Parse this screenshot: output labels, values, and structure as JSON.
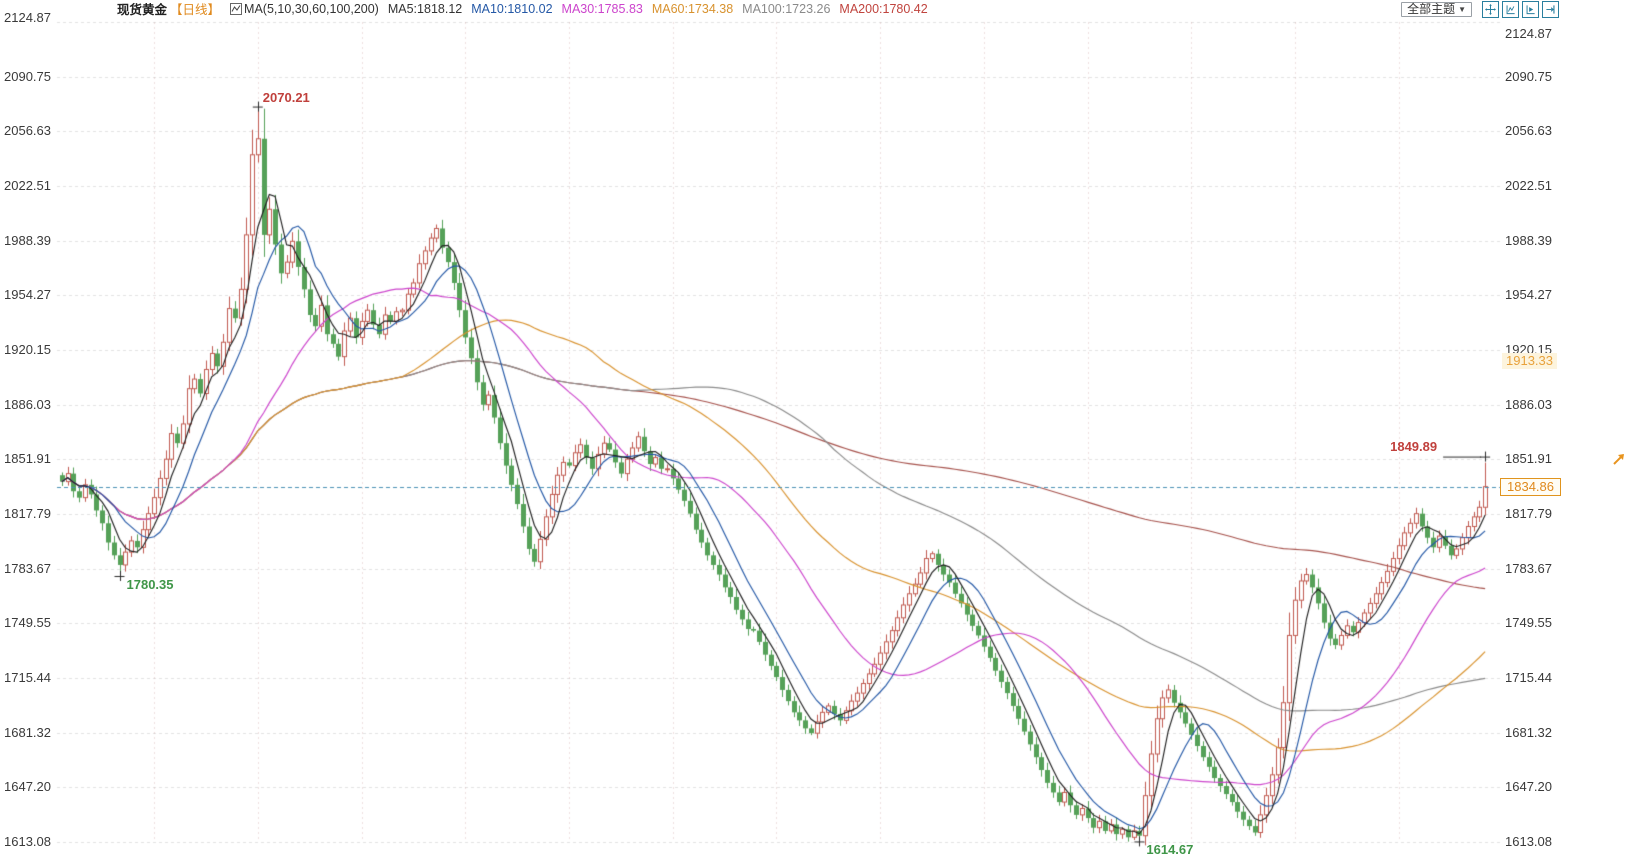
{
  "header": {
    "title": "现货黄金",
    "period": "【日线】",
    "ma_group_label": "MA(5,10,30,60,100,200)",
    "ma_items": [
      {
        "label": "MA5:1818.12",
        "color": "#333333"
      },
      {
        "label": "MA10:1810.02",
        "color": "#2458a6"
      },
      {
        "label": "MA30:1785.83",
        "color": "#cc44cc"
      },
      {
        "label": "MA60:1734.38",
        "color": "#d8922e"
      },
      {
        "label": "MA100:1723.26",
        "color": "#8a8a8a"
      },
      {
        "label": "MA200:1780.42",
        "color": "#c0443e"
      }
    ]
  },
  "toolbar": {
    "theme_button": "全部主题",
    "dropdown_arrow": "▼",
    "icon_color": "#2a7f9e",
    "icons": [
      "pan-crosshair-icon",
      "chart-axis-icon",
      "chart-play-icon",
      "pan-right-icon"
    ]
  },
  "y_axis": {
    "ticks": [
      "2124.87",
      "2090.75",
      "2056.63",
      "2022.51",
      "1988.39",
      "1954.27",
      "1920.15",
      "1886.03",
      "1851.91",
      "1817.79",
      "1783.67",
      "1749.55",
      "1715.44",
      "1681.32",
      "1647.20",
      "1613.08"
    ],
    "highlight": {
      "label": "1913.33",
      "price": 1913.33,
      "color": "#e8a23c"
    }
  },
  "price_tag": {
    "label": "1834.86",
    "price": 1834.86,
    "color": "#e08a1e"
  },
  "markers": {
    "high": {
      "label": "2070.21",
      "index": 34,
      "price": 2070.21,
      "color": "#c0403c",
      "position": "above-right"
    },
    "early_low": {
      "label": "1780.35",
      "index": 10,
      "price": 1780.35,
      "color": "#3f9648",
      "position": "below-right"
    },
    "low": {
      "label": "1614.67",
      "index": 187,
      "price": 1614.67,
      "color": "#3f9648",
      "position": "below-right"
    },
    "last_high": {
      "label": "1849.89",
      "index": 247,
      "price": 1849.89,
      "color": "#c0403c",
      "position": "left-connector"
    }
  },
  "chart_data": {
    "type": "candlestick",
    "instrument": "现货黄金",
    "interval": "日线",
    "y_min": 1613.08,
    "y_max": 2124.87,
    "y_ticks": [
      2124.87,
      2090.75,
      2056.63,
      2022.51,
      1988.39,
      1954.27,
      1920.15,
      1886.03,
      1851.91,
      1817.79,
      1783.67,
      1749.55,
      1715.44,
      1681.32,
      1647.2,
      1613.08
    ],
    "open_first": 1842,
    "closes": [
      1838,
      1843,
      1832,
      1828,
      1836,
      1830,
      1820,
      1812,
      1800,
      1792,
      1786,
      1794,
      1801,
      1797,
      1808,
      1818,
      1828,
      1840,
      1852,
      1868,
      1862,
      1874,
      1896,
      1902,
      1893,
      1908,
      1918,
      1910,
      1925,
      1946,
      1940,
      1958,
      1992,
      2042,
      2052,
      1992,
      2008,
      1986,
      1968,
      1975,
      1988,
      1972,
      1958,
      1942,
      1935,
      1948,
      1930,
      1924,
      1916,
      1932,
      1940,
      1928,
      1938,
      1945,
      1936,
      1930,
      1942,
      1938,
      1944,
      1945,
      1955,
      1962,
      1974,
      1982,
      1990,
      1996,
      1984,
      1975,
      1962,
      1945,
      1928,
      1915,
      1900,
      1886,
      1892,
      1878,
      1862,
      1848,
      1836,
      1824,
      1810,
      1796,
      1788,
      1802,
      1816,
      1830,
      1842,
      1850,
      1848,
      1856,
      1861,
      1853,
      1846,
      1855,
      1862,
      1858,
      1850,
      1843,
      1852,
      1859,
      1866,
      1857,
      1849,
      1853,
      1846,
      1846,
      1840,
      1833,
      1826,
      1818,
      1808,
      1800,
      1792,
      1786,
      1780,
      1772,
      1766,
      1758,
      1752,
      1746,
      1745,
      1738,
      1730,
      1723,
      1716,
      1708,
      1701,
      1694,
      1689,
      1684,
      1681,
      1688,
      1694,
      1698,
      1693,
      1689,
      1695,
      1701,
      1706,
      1712,
      1718,
      1724,
      1731,
      1738,
      1745,
      1753,
      1761,
      1768,
      1774,
      1781,
      1790,
      1793,
      1786,
      1780,
      1775,
      1768,
      1762,
      1755,
      1748,
      1742,
      1735,
      1728,
      1720,
      1713,
      1706,
      1698,
      1690,
      1682,
      1674,
      1666,
      1658,
      1650,
      1644,
      1638,
      1644,
      1636,
      1630,
      1634,
      1628,
      1622,
      1626,
      1620,
      1624,
      1618,
      1621,
      1616,
      1620,
      1617,
      1642,
      1668,
      1690,
      1703,
      1708,
      1700,
      1694,
      1687,
      1680,
      1673,
      1666,
      1660,
      1653,
      1648,
      1643,
      1638,
      1632,
      1627,
      1623,
      1619,
      1630,
      1642,
      1655,
      1672,
      1700,
      1742,
      1764,
      1776,
      1780,
      1772,
      1762,
      1750,
      1740,
      1736,
      1742,
      1748,
      1744,
      1750,
      1756,
      1762,
      1768,
      1775,
      1782,
      1790,
      1798,
      1806,
      1812,
      1818,
      1810,
      1803,
      1797,
      1804,
      1798,
      1792,
      1796,
      1803,
      1810,
      1816,
      1822,
      1834.86
    ],
    "extremes": {
      "10": {
        "low": 1780.35
      },
      "34": {
        "high": 2070.21
      },
      "187": {
        "low": 1614.67
      },
      "247": {
        "high": 1849.89
      }
    },
    "up_color": "#c05a50",
    "down_color": "#55a158",
    "moving_averages": [
      {
        "period": 5,
        "color": "#222222"
      },
      {
        "period": 10,
        "color": "#2458a6"
      },
      {
        "period": 30,
        "color": "#cc44cc"
      },
      {
        "period": 60,
        "color": "#d8922e"
      },
      {
        "period": 100,
        "color": "#8a8a8a"
      },
      {
        "period": 200,
        "color": "#a6524c"
      }
    ],
    "current_price": 1834.86,
    "current_price_line_color": "#4a90b5",
    "cross_color": "#2a2a2a",
    "grid": {
      "h_color": "#e2e2e2",
      "v_color": "rgba(205,160,160,0.35)",
      "v_start": 16,
      "v_step": 18
    },
    "legend_position": "top-left",
    "grid_on": true
  }
}
